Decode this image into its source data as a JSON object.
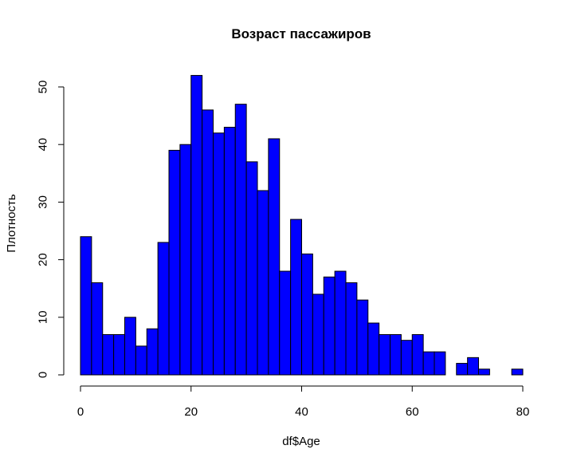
{
  "chart_data": {
    "type": "bar",
    "title": "Возраст пассажиров",
    "xlabel": "df$Age",
    "ylabel": "Плотность",
    "bin_width": 2,
    "x_start": 0,
    "values": [
      24,
      16,
      7,
      7,
      10,
      5,
      8,
      23,
      39,
      40,
      52,
      46,
      42,
      43,
      47,
      37,
      32,
      41,
      18,
      27,
      21,
      14,
      17,
      18,
      16,
      13,
      9,
      7,
      7,
      6,
      7,
      4,
      4,
      0,
      2,
      3,
      1,
      0,
      0,
      1
    ],
    "xlim": [
      0,
      80
    ],
    "ylim": [
      0,
      52
    ],
    "x_ticks": [
      0,
      20,
      40,
      60,
      80
    ],
    "y_ticks": [
      0,
      10,
      20,
      30,
      40,
      50
    ],
    "bar_color": "#0000ff",
    "grid": false,
    "legend": "none"
  }
}
